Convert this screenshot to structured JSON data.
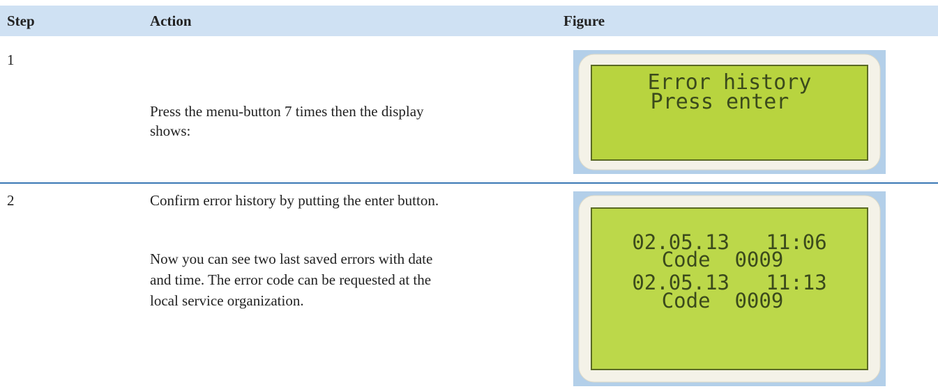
{
  "header": {
    "columns": [
      "Step",
      "Action",
      "Figure"
    ]
  },
  "rows": [
    {
      "step": "1",
      "action": [
        "Press the menu-button 7 times then the display shows:"
      ],
      "display": [
        "Error history",
        "Press enter"
      ]
    },
    {
      "step": "2",
      "action": [
        "Confirm error history by putting the enter button.",
        "Now you can see two last saved errors with date and time. The error code can be requested at the local service organization."
      ],
      "display": [
        "02.05.13   11:06",
        "Code  0009",
        "02.05.13   11:13",
        "Code  0009"
      ]
    }
  ]
}
